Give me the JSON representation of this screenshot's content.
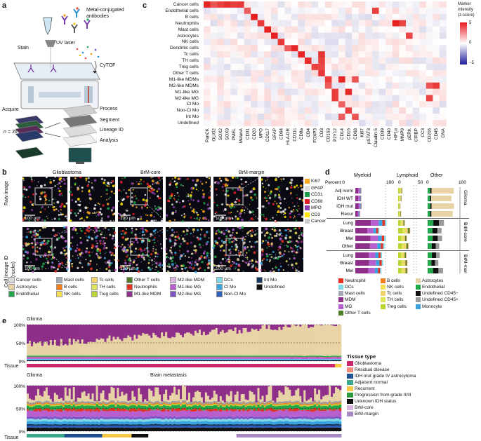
{
  "panel_labels": {
    "a": "a",
    "b": "b",
    "c": "c",
    "d": "d",
    "e": "e"
  },
  "panel_a": {
    "metal_label_1": "Metal-conjugated",
    "metal_label_2": "antibodies",
    "stain": "Stain",
    "uv_laser": "UV laser",
    "cytof": "CyTOF",
    "acquire": "Acquire",
    "n_label": "n = 36",
    "process": "Process",
    "segment": "Segment",
    "lineage": "Lineage ID",
    "analysis": "Analysis"
  },
  "panel_b": {
    "titles": [
      "Glioblastoma",
      "BrM-core",
      "BrM-margin"
    ],
    "row_labels": [
      "Raw image",
      "Cell lineage ID",
      "(nuclei)"
    ],
    "scale": "100 μm",
    "channel_legend": [
      {
        "label": "Ki67",
        "color": "#f6a623"
      },
      {
        "label": "GFAP",
        "color": "#dddddd"
      },
      {
        "label": "CD31",
        "color": "#1aa04a"
      },
      {
        "label": "CD68",
        "color": "#e21f26"
      },
      {
        "label": "MPO",
        "color": "#8e3fb0"
      },
      {
        "label": "CD3",
        "color": "#ffe600"
      },
      {
        "label": "Cancer",
        "color": "#cccccc"
      }
    ],
    "lineage_legend": [
      {
        "label": "Cancer cells",
        "color": "#d9d9d9"
      },
      {
        "label": "Astrocytes",
        "color": "#e7d3a6"
      },
      {
        "label": "Endothelial",
        "color": "#22a84a"
      },
      {
        "label": "Mast cells",
        "color": "#9fa8b3"
      },
      {
        "label": "B cells",
        "color": "#f07f1f"
      },
      {
        "label": "NK cells",
        "color": "#f5e05a"
      },
      {
        "label": "Tc cells",
        "color": "#f2d36b"
      },
      {
        "label": "TH cells",
        "color": "#dfe35a"
      },
      {
        "label": "Treg cells",
        "color": "#bcd42f"
      },
      {
        "label": "Other T cells",
        "color": "#4f7d28"
      },
      {
        "label": "Neutrophils",
        "color": "#e43323"
      },
      {
        "label": "M1-like MDM",
        "color": "#8e2f8a"
      },
      {
        "label": "M2-like MDM",
        "color": "#d8b6e0"
      },
      {
        "label": "M1-like MG",
        "color": "#b85fd0"
      },
      {
        "label": "M2-like MG",
        "color": "#8055c4"
      },
      {
        "label": "DCs",
        "color": "#7fd8e6"
      },
      {
        "label": "Cl Mo",
        "color": "#3aa3df"
      },
      {
        "label": "Non-Cl Mo",
        "color": "#2f5fbf"
      },
      {
        "label": "Int Mo",
        "color": "#17375e"
      },
      {
        "label": "Undefined",
        "color": "#111111"
      }
    ]
  },
  "panel_c": {
    "rows": [
      "Cancer cells",
      "Endothelial cells",
      "B cells",
      "Neutrophils",
      "Mast cells",
      "Astrocytes",
      "NK cells",
      "Dendritic cells",
      "Tc cells",
      "TH cells",
      "Treg cells",
      "Other T cells",
      "M1-like MDMs",
      "M2-like MDMs",
      "M1-like MG",
      "M2-like MG",
      "Cl Mo",
      "Non-Cl Mo",
      "Int Mo",
      "Undefined"
    ],
    "cols": [
      "PanCK",
      "OLIG2",
      "SOX2",
      "SOX9",
      "PMEL",
      "MelanA",
      "CD31",
      "CD20",
      "MPO",
      "CD117",
      "GFAP",
      "CD94",
      "HLA-DR",
      "CD11c",
      "CD8a",
      "CD4",
      "FOXP3",
      "CD3",
      "CD163",
      "P2Y12",
      "CD14",
      "CD16",
      "CD68",
      "Ki67",
      "pSTAT3",
      "Claudin-5",
      "CD39",
      "CD40",
      "HIF1α",
      "MMP9",
      "pERK",
      "CIRBP",
      "CC3",
      "CD206",
      "CD45",
      "DNA"
    ],
    "legend_title": [
      "Marker",
      "intensity",
      "(z-score)"
    ],
    "legend_ticks": [
      "5",
      "0",
      "−5"
    ]
  },
  "panel_d": {
    "headers": [
      "Myeloid",
      "Lymphoid",
      "Other"
    ],
    "percent_label": "Percent 0",
    "ticks": [
      "100",
      "0",
      "50",
      "0",
      "100"
    ],
    "groups": [
      {
        "name": "Glioma",
        "rows": [
          "Adj norm",
          "IDH WT",
          "IDH mut",
          "Recur"
        ]
      },
      {
        "name": "BrM-core",
        "rows": [
          "Lung",
          "Breast",
          "Mel",
          "Other"
        ]
      },
      {
        "name": "BrM-margin",
        "rows": [
          "Lung",
          "Breast",
          "Mel",
          "Other"
        ]
      }
    ],
    "legend": [
      {
        "label": "Neutrophil",
        "color": "#e43323"
      },
      {
        "label": "B cells",
        "color": "#f07f1f"
      },
      {
        "label": "Astrocytes",
        "color": "#e7d3a6"
      },
      {
        "label": "DCs",
        "color": "#7fd8e6"
      },
      {
        "label": "NK cells",
        "color": "#f5e05a"
      },
      {
        "label": "Endothelial",
        "color": "#22a84a"
      },
      {
        "label": "Mast cells",
        "color": "#9fa8b3"
      },
      {
        "label": "Tc cells",
        "color": "#f2d36b"
      },
      {
        "label": "Undefined CD45−",
        "color": "#111111"
      },
      {
        "label": "MDM",
        "color": "#8e2f8a"
      },
      {
        "label": "TH cells",
        "color": "#dfe35a"
      },
      {
        "label": "Undefined CD45+",
        "color": "#9b9b9b"
      },
      {
        "label": "MG",
        "color": "#b85fd0"
      },
      {
        "label": "Treg cells",
        "color": "#bcd42f"
      },
      {
        "label": "Monocyte",
        "color": "#3aa3df"
      },
      {
        "label": "Other T cells",
        "color": "#4f7d28"
      }
    ]
  },
  "panel_e": {
    "top_title": "Glioma",
    "bottom_titles": [
      "Glioma",
      "Brain metastasis"
    ],
    "ticks": [
      "100%",
      "50%",
      "0%"
    ],
    "tissue": "Tissue",
    "tissue_type_title": "Tissue type",
    "tissue_types": [
      {
        "label": "Glioblastoma",
        "color": "#c8256b"
      },
      {
        "label": "Residual disease",
        "color": "#f28a7a"
      },
      {
        "label": "IDH mut grade IV astrocytoma",
        "color": "#1f4f8f"
      },
      {
        "label": "Adjacent normal",
        "color": "#3aa88c"
      },
      {
        "label": "Recurrent",
        "color": "#f6c945"
      },
      {
        "label": "Progression from grade II/III",
        "color": "#2c9a3a"
      },
      {
        "label": "Unknown IDH status",
        "color": "#111111"
      },
      {
        "label": "BrM-core",
        "color": "#d6b4dd"
      },
      {
        "label": "BrM-margin",
        "color": "#a888c4"
      }
    ]
  }
}
